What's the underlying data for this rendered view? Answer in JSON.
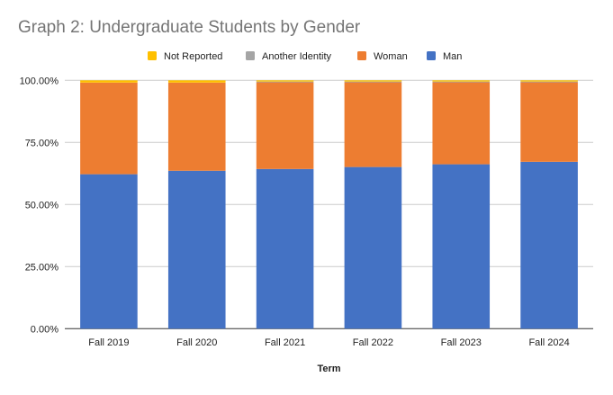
{
  "chart_data": {
    "type": "bar",
    "stacked": true,
    "title": "Graph 2: Undergraduate Students by Gender",
    "xlabel": "Term",
    "ylabel": "",
    "ylim": [
      0,
      100
    ],
    "yticks": [
      "0.00%",
      "25.00%",
      "50.00%",
      "75.00%",
      "100.00%"
    ],
    "categories": [
      "Fall 2019",
      "Fall 2020",
      "Fall 2021",
      "Fall 2022",
      "Fall 2023",
      "Fall 2024"
    ],
    "series": [
      {
        "name": "Man",
        "color": "#4472c4",
        "values": [
          62.2,
          63.6,
          64.3,
          65.1,
          66.2,
          67.2
        ]
      },
      {
        "name": "Woman",
        "color": "#ed7d31",
        "values": [
          36.9,
          35.5,
          34.9,
          34.1,
          33.0,
          32.0
        ]
      },
      {
        "name": "Another Identity",
        "color": "#a5a5a5",
        "values": [
          0.0,
          0.0,
          0.3,
          0.3,
          0.3,
          0.3
        ]
      },
      {
        "name": "Not Reported",
        "color": "#ffc000",
        "values": [
          0.9,
          0.9,
          0.5,
          0.5,
          0.5,
          0.5
        ]
      }
    ],
    "legend_order": [
      "Not Reported",
      "Another Identity",
      "Woman",
      "Man"
    ],
    "legend_position": "top",
    "grid": true
  }
}
